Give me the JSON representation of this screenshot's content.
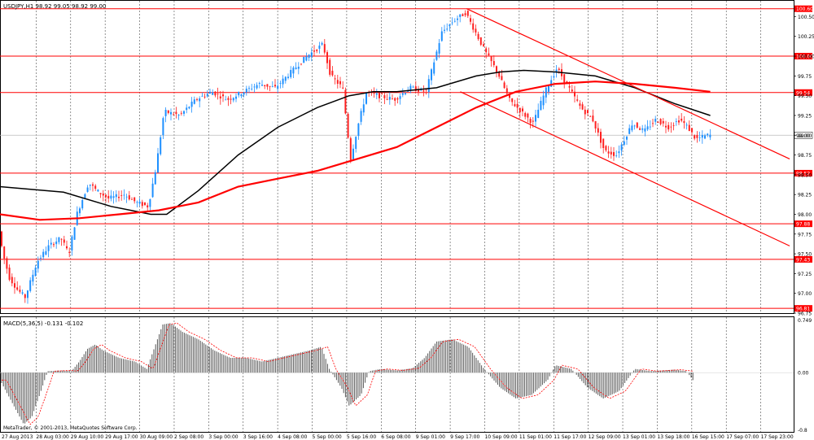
{
  "chart_data": [
    {
      "type": "candlestick",
      "panel": "main",
      "title": "USDJPY,H1  98.92 99.05 98.92 99.00",
      "y_ticks": [
        "100.50",
        "100.25",
        "100.00",
        "99.75",
        "99.50",
        "99.25",
        "99.00",
        "98.75",
        "98.50",
        "98.25",
        "98.00",
        "97.75",
        "97.50",
        "97.25",
        "97.00",
        "96.75"
      ],
      "ylim": [
        96.75,
        100.7
      ],
      "x_labels": [
        "27 Aug 2013",
        "28 Aug 03:00",
        "29 Aug 10:00",
        "29 Aug 17:00",
        "30 Aug 09:00",
        "2 Sep 08:00",
        "3 Sep 00:00",
        "3 Sep 16:00",
        "4 Sep 08:00",
        "5 Sep 00:00",
        "5 Sep 16:00",
        "6 Sep 08:00",
        "9 Sep 01:00",
        "9 Sep 17:00",
        "10 Sep 09:00",
        "11 Sep 01:00",
        "11 Sep 17:00",
        "12 Sep 09:00",
        "13 Sep 01:00",
        "13 Sep 18:00",
        "16 Sep 15:00",
        "17 Sep 07:00",
        "17 Sep 23:00"
      ],
      "horizontal_levels": [
        {
          "value": 100.6,
          "label": "100.60"
        },
        {
          "value": 100.0,
          "label": "100.00"
        },
        {
          "value": 99.54,
          "label": "99.54"
        },
        {
          "value": 98.52,
          "label": "98.52"
        },
        {
          "value": 97.88,
          "label": "97.88"
        },
        {
          "value": 97.43,
          "label": "97.43"
        },
        {
          "value": 96.81,
          "label": "96.81"
        }
      ],
      "current_price": {
        "value": 99.0,
        "label": "99.00"
      },
      "price_path": [
        [
          0,
          97.9
        ],
        [
          0.007,
          97.5
        ],
        [
          0.015,
          97.2
        ],
        [
          0.025,
          97.05
        ],
        [
          0.035,
          96.95
        ],
        [
          0.05,
          97.4
        ],
        [
          0.065,
          97.6
        ],
        [
          0.08,
          97.7
        ],
        [
          0.09,
          97.5
        ],
        [
          0.1,
          98.0
        ],
        [
          0.115,
          98.4
        ],
        [
          0.125,
          98.3
        ],
        [
          0.14,
          98.2
        ],
        [
          0.16,
          98.25
        ],
        [
          0.175,
          98.15
        ],
        [
          0.19,
          98.1
        ],
        [
          0.2,
          98.6
        ],
        [
          0.21,
          99.3
        ],
        [
          0.23,
          99.25
        ],
        [
          0.25,
          99.45
        ],
        [
          0.27,
          99.55
        ],
        [
          0.29,
          99.45
        ],
        [
          0.31,
          99.55
        ],
        [
          0.33,
          99.65
        ],
        [
          0.35,
          99.6
        ],
        [
          0.37,
          99.8
        ],
        [
          0.39,
          100.0
        ],
        [
          0.41,
          100.15
        ],
        [
          0.42,
          99.75
        ],
        [
          0.435,
          99.6
        ],
        [
          0.445,
          98.7
        ],
        [
          0.455,
          99.15
        ],
        [
          0.465,
          99.55
        ],
        [
          0.48,
          99.5
        ],
        [
          0.5,
          99.45
        ],
        [
          0.52,
          99.6
        ],
        [
          0.54,
          99.55
        ],
        [
          0.56,
          100.3
        ],
        [
          0.575,
          100.45
        ],
        [
          0.59,
          100.55
        ],
        [
          0.6,
          100.35
        ],
        [
          0.615,
          100.05
        ],
        [
          0.63,
          99.8
        ],
        [
          0.645,
          99.45
        ],
        [
          0.66,
          99.3
        ],
        [
          0.675,
          99.15
        ],
        [
          0.69,
          99.55
        ],
        [
          0.705,
          99.85
        ],
        [
          0.72,
          99.6
        ],
        [
          0.735,
          99.35
        ],
        [
          0.75,
          99.2
        ],
        [
          0.765,
          98.8
        ],
        [
          0.78,
          98.75
        ],
        [
          0.79,
          98.95
        ],
        [
          0.8,
          99.15
        ],
        [
          0.815,
          99.05
        ],
        [
          0.83,
          99.2
        ],
        [
          0.845,
          99.1
        ],
        [
          0.86,
          99.2
        ],
        [
          0.87,
          99.1
        ],
        [
          0.88,
          98.95
        ],
        [
          0.895,
          99.0
        ]
      ],
      "moving_averages": [
        {
          "color": "#000000",
          "points": [
            [
              0,
              98.35
            ],
            [
              0.08,
              98.28
            ],
            [
              0.14,
              98.1
            ],
            [
              0.19,
              98.0
            ],
            [
              0.21,
              98.0
            ],
            [
              0.25,
              98.3
            ],
            [
              0.3,
              98.75
            ],
            [
              0.35,
              99.1
            ],
            [
              0.4,
              99.35
            ],
            [
              0.44,
              99.5
            ],
            [
              0.47,
              99.55
            ],
            [
              0.5,
              99.55
            ],
            [
              0.55,
              99.6
            ],
            [
              0.6,
              99.75
            ],
            [
              0.63,
              99.8
            ],
            [
              0.66,
              99.82
            ],
            [
              0.7,
              99.8
            ],
            [
              0.75,
              99.75
            ],
            [
              0.8,
              99.6
            ],
            [
              0.85,
              99.4
            ],
            [
              0.895,
              99.25
            ]
          ]
        },
        {
          "color": "#ff0000",
          "points": [
            [
              0,
              98.0
            ],
            [
              0.05,
              97.93
            ],
            [
              0.1,
              97.95
            ],
            [
              0.15,
              98.0
            ],
            [
              0.2,
              98.05
            ],
            [
              0.25,
              98.15
            ],
            [
              0.3,
              98.35
            ],
            [
              0.35,
              98.45
            ],
            [
              0.4,
              98.55
            ],
            [
              0.45,
              98.7
            ],
            [
              0.5,
              98.85
            ],
            [
              0.55,
              99.1
            ],
            [
              0.6,
              99.35
            ],
            [
              0.65,
              99.55
            ],
            [
              0.7,
              99.65
            ],
            [
              0.75,
              99.68
            ],
            [
              0.8,
              99.65
            ],
            [
              0.85,
              99.6
            ],
            [
              0.895,
              99.55
            ]
          ]
        }
      ],
      "trendlines": [
        {
          "color": "#ff0000",
          "from": [
            0.588,
            100.6
          ],
          "to": [
            0.995,
            98.7
          ]
        },
        {
          "color": "#ff0000",
          "from": [
            0.58,
            99.55
          ],
          "to": [
            0.995,
            97.6
          ]
        }
      ]
    },
    {
      "type": "bar",
      "panel": "macd",
      "title": "MACD(5,36,5) -0.131 -0.102",
      "y_ticks": [
        "0.749",
        "0.00",
        "-0.8"
      ],
      "ylim": [
        -0.8,
        0.749
      ],
      "histogram_path": [
        [
          0,
          -0.1
        ],
        [
          0.01,
          -0.3
        ],
        [
          0.02,
          -0.5
        ],
        [
          0.03,
          -0.7
        ],
        [
          0.04,
          -0.6
        ],
        [
          0.05,
          -0.3
        ],
        [
          0.06,
          0.02
        ],
        [
          0.08,
          0.03
        ],
        [
          0.09,
          0.02
        ],
        [
          0.1,
          0.15
        ],
        [
          0.11,
          0.32
        ],
        [
          0.12,
          0.38
        ],
        [
          0.13,
          0.3
        ],
        [
          0.15,
          0.2
        ],
        [
          0.17,
          0.15
        ],
        [
          0.185,
          0.05
        ],
        [
          0.2,
          0.5
        ],
        [
          0.205,
          0.65
        ],
        [
          0.215,
          0.67
        ],
        [
          0.23,
          0.55
        ],
        [
          0.25,
          0.45
        ],
        [
          0.27,
          0.3
        ],
        [
          0.29,
          0.2
        ],
        [
          0.31,
          0.2
        ],
        [
          0.33,
          0.15
        ],
        [
          0.35,
          0.2
        ],
        [
          0.37,
          0.25
        ],
        [
          0.39,
          0.3
        ],
        [
          0.405,
          0.35
        ],
        [
          0.415,
          0.05
        ],
        [
          0.43,
          -0.2
        ],
        [
          0.44,
          -0.45
        ],
        [
          0.455,
          -0.3
        ],
        [
          0.465,
          0.02
        ],
        [
          0.48,
          0.05
        ],
        [
          0.5,
          0.03
        ],
        [
          0.52,
          0.06
        ],
        [
          0.535,
          0.2
        ],
        [
          0.55,
          0.42
        ],
        [
          0.57,
          0.45
        ],
        [
          0.59,
          0.35
        ],
        [
          0.61,
          0.05
        ],
        [
          0.63,
          -0.2
        ],
        [
          0.65,
          -0.35
        ],
        [
          0.67,
          -0.3
        ],
        [
          0.69,
          -0.1
        ],
        [
          0.7,
          0.1
        ],
        [
          0.72,
          0.05
        ],
        [
          0.74,
          -0.2
        ],
        [
          0.76,
          -0.35
        ],
        [
          0.78,
          -0.25
        ],
        [
          0.8,
          0.05
        ],
        [
          0.82,
          0.02
        ],
        [
          0.85,
          0.04
        ],
        [
          0.865,
          0.02
        ],
        [
          0.875,
          -0.13
        ]
      ]
    }
  ],
  "footer": {
    "copyright": "MetaTrader, © 2001-2013, MetaQuotes Software Corp."
  }
}
